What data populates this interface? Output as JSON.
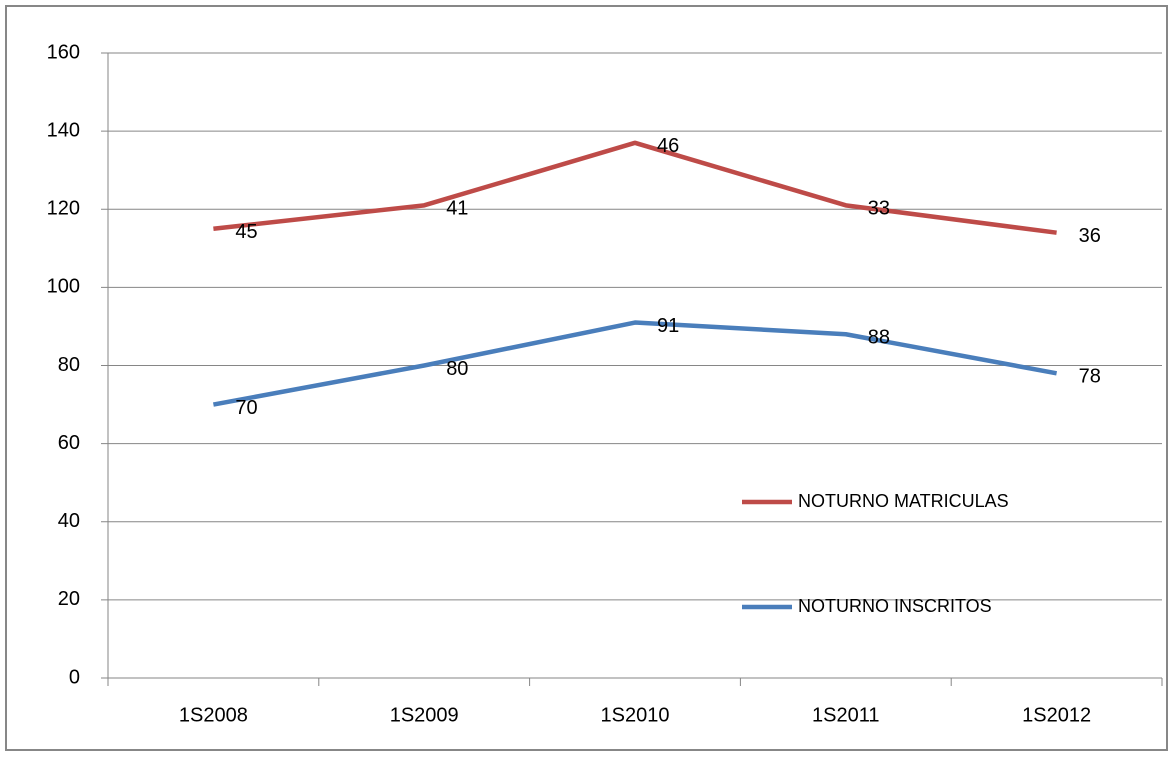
{
  "chart_data": {
    "type": "line",
    "stacked": true,
    "categories": [
      "1S2008",
      "1S2009",
      "1S2010",
      "1S2011",
      "1S2012"
    ],
    "series": [
      {
        "name": "NOTURNO INSCRITOS",
        "color": "#4a7ebb",
        "values": [
          70,
          80,
          91,
          88,
          78
        ]
      },
      {
        "name": "NOTURNO MATRICULAS",
        "color": "#be4b48",
        "values": [
          45,
          41,
          46,
          33,
          36
        ]
      }
    ],
    "ylim": [
      0,
      160
    ],
    "yticks": [
      0,
      20,
      40,
      60,
      80,
      100,
      120,
      140,
      160
    ],
    "grid": true,
    "data_labels": true,
    "legend_position": "right"
  }
}
